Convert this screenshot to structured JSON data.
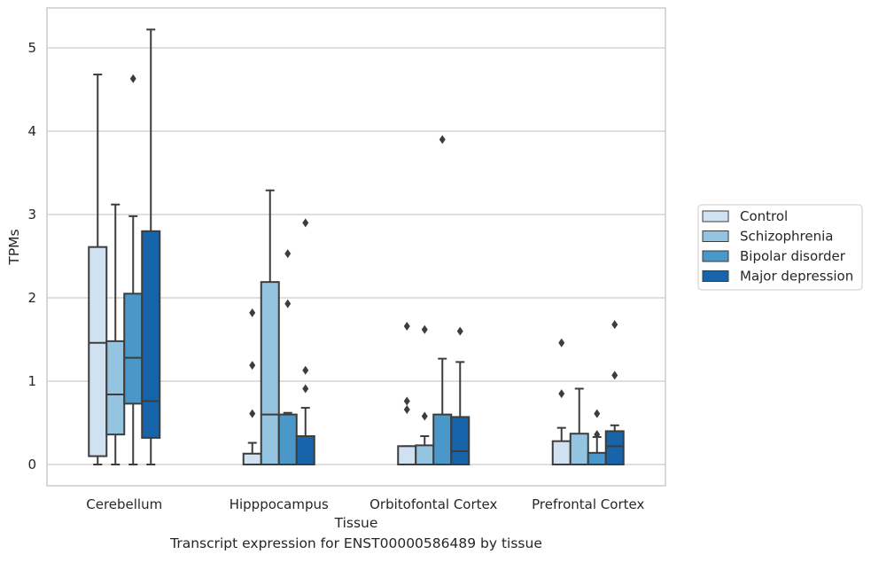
{
  "chart_data": {
    "type": "box",
    "title": "",
    "caption": "Transcript expression for ENST00000586489 by tissue",
    "xlabel": "Tissue",
    "ylabel": "TPMs",
    "ylim": [
      -0.25,
      5.5
    ],
    "yticks": [
      0,
      1,
      2,
      3,
      4,
      5
    ],
    "grid": true,
    "legend_position": "right",
    "categories": [
      "Cerebellum",
      "Hipppocampus",
      "Orbitofontal Cortex",
      "Prefrontal Cortex"
    ],
    "series": [
      {
        "name": "Control",
        "color": "#d0e1f2",
        "boxes": [
          {
            "whislo": 0.0,
            "q1": 0.1,
            "med": 1.46,
            "q3": 2.61,
            "whishi": 4.68,
            "fliers": []
          },
          {
            "whislo": 0.0,
            "q1": 0.0,
            "med": 0.0,
            "q3": 0.13,
            "whishi": 0.26,
            "fliers": [
              0.61,
              1.19,
              1.82
            ]
          },
          {
            "whislo": 0.0,
            "q1": 0.0,
            "med": 0.0,
            "q3": 0.22,
            "whishi": 0.22,
            "fliers": [
              0.66,
              0.76,
              1.66
            ]
          },
          {
            "whislo": 0.0,
            "q1": 0.0,
            "med": 0.0,
            "q3": 0.28,
            "whishi": 0.44,
            "fliers": [
              0.85,
              1.46
            ]
          }
        ]
      },
      {
        "name": "Schizophrenia",
        "color": "#94c4df",
        "boxes": [
          {
            "whislo": 0.0,
            "q1": 0.36,
            "med": 0.84,
            "q3": 1.48,
            "whishi": 3.12,
            "fliers": []
          },
          {
            "whislo": 0.0,
            "q1": 0.0,
            "med": 0.6,
            "q3": 2.19,
            "whishi": 3.29,
            "fliers": []
          },
          {
            "whislo": 0.0,
            "q1": 0.0,
            "med": 0.0,
            "q3": 0.23,
            "whishi": 0.34,
            "fliers": [
              0.58,
              1.62
            ]
          },
          {
            "whislo": 0.0,
            "q1": 0.0,
            "med": 0.0,
            "q3": 0.37,
            "whishi": 0.91,
            "fliers": []
          }
        ]
      },
      {
        "name": "Bipolar disorder",
        "color": "#4a98c9",
        "boxes": [
          {
            "whislo": 0.0,
            "q1": 0.73,
            "med": 1.28,
            "q3": 2.05,
            "whishi": 2.98,
            "fliers": [
              4.63
            ]
          },
          {
            "whislo": 0.0,
            "q1": 0.0,
            "med": 0.0,
            "q3": 0.6,
            "whishi": 0.62,
            "fliers": [
              1.93,
              2.53
            ]
          },
          {
            "whislo": 0.0,
            "q1": 0.0,
            "med": 0.0,
            "q3": 0.6,
            "whishi": 1.27,
            "fliers": [
              3.9
            ]
          },
          {
            "whislo": 0.0,
            "q1": 0.0,
            "med": 0.0,
            "q3": 0.14,
            "whishi": 0.33,
            "fliers": [
              0.36,
              0.61
            ]
          }
        ]
      },
      {
        "name": "Major depression",
        "color": "#1764ab",
        "boxes": [
          {
            "whislo": 0.0,
            "q1": 0.32,
            "med": 0.76,
            "q3": 2.8,
            "whishi": 5.22,
            "fliers": []
          },
          {
            "whislo": 0.0,
            "q1": 0.0,
            "med": 0.0,
            "q3": 0.34,
            "whishi": 0.68,
            "fliers": [
              0.91,
              1.13,
              2.9
            ]
          },
          {
            "whislo": 0.0,
            "q1": 0.0,
            "med": 0.16,
            "q3": 0.57,
            "whishi": 1.23,
            "fliers": [
              1.6
            ]
          },
          {
            "whislo": 0.0,
            "q1": 0.0,
            "med": 0.22,
            "q3": 0.4,
            "whishi": 0.47,
            "fliers": [
              1.07,
              1.68
            ]
          }
        ]
      }
    ]
  },
  "colors": {
    "grid": "#cccccc",
    "frame": "#cccccc",
    "box_edge": "#3d3d3d"
  }
}
